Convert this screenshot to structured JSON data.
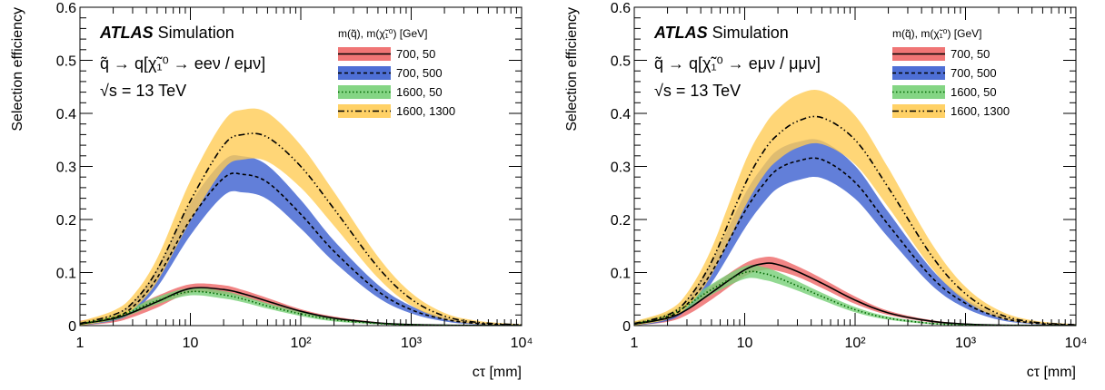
{
  "chart_data": [
    {
      "type": "line",
      "experiment": "ATLAS",
      "label": "Simulation",
      "process": "q̃ → q[χ̃₁⁰ → eeν / eμν]",
      "energy": "√s = 13 TeV",
      "xlabel": "cτ [mm]",
      "ylabel": "Selection efficiency",
      "xscale": "log",
      "xlim": [
        1,
        10000
      ],
      "ylim": [
        0,
        0.6
      ],
      "xticks": [
        "1",
        "10",
        "10²",
        "10³",
        "10⁴"
      ],
      "yticks": [
        "0",
        "0.1",
        "0.2",
        "0.3",
        "0.4",
        "0.5",
        "0.6"
      ],
      "legend_title": "m(q̃), m(χ̃₁⁰) [GeV]",
      "legend_position": "top-right",
      "x": [
        1,
        2,
        3,
        5,
        10,
        20,
        30,
        50,
        100,
        200,
        500,
        1000,
        2000,
        4000,
        10000
      ],
      "series": [
        {
          "name": "700, 50",
          "line": "solid",
          "color": "#000000",
          "band_color": "#ee6666",
          "values": [
            0.003,
            0.013,
            0.025,
            0.045,
            0.07,
            0.068,
            0.06,
            0.046,
            0.027,
            0.014,
            0.005,
            0.002,
            0.0008,
            0.0003,
            0.0001
          ],
          "band": [
            0.006,
            0.007,
            0.009,
            0.011,
            0.008,
            0.008,
            0.007,
            0.006,
            0.004,
            0.003,
            0.0015,
            0.001,
            0.0005,
            0.0002,
            0.0001
          ]
        },
        {
          "name": "700, 500",
          "line": "dashed",
          "color": "#000000",
          "band_color": "#3b5fd0",
          "values": [
            0.003,
            0.015,
            0.035,
            0.09,
            0.2,
            0.278,
            0.285,
            0.27,
            0.21,
            0.14,
            0.065,
            0.03,
            0.012,
            0.004,
            0.001
          ],
          "band": [
            0.004,
            0.006,
            0.01,
            0.018,
            0.03,
            0.033,
            0.034,
            0.032,
            0.027,
            0.02,
            0.012,
            0.007,
            0.004,
            0.002,
            0.0008
          ]
        },
        {
          "name": "1600, 50",
          "line": "dotted",
          "color": "#006600",
          "band_color": "#77d077",
          "values": [
            0.003,
            0.015,
            0.028,
            0.047,
            0.064,
            0.058,
            0.05,
            0.037,
            0.022,
            0.011,
            0.004,
            0.0015,
            0.0005,
            0.0002,
            0.0001
          ],
          "band": [
            0.004,
            0.005,
            0.006,
            0.007,
            0.007,
            0.007,
            0.006,
            0.005,
            0.004,
            0.003,
            0.0015,
            0.0008,
            0.0004,
            0.0002,
            0.0001
          ]
        },
        {
          "name": "1600, 1300",
          "line": "dashdotdot",
          "color": "#000000",
          "band_color": "#ffcc55",
          "values": [
            0.004,
            0.02,
            0.043,
            0.105,
            0.235,
            0.34,
            0.36,
            0.355,
            0.3,
            0.22,
            0.11,
            0.05,
            0.018,
            0.006,
            0.0015
          ],
          "band": [
            0.004,
            0.008,
            0.013,
            0.022,
            0.038,
            0.045,
            0.047,
            0.046,
            0.04,
            0.032,
            0.02,
            0.012,
            0.006,
            0.003,
            0.001
          ]
        }
      ]
    },
    {
      "type": "line",
      "experiment": "ATLAS",
      "label": "Simulation",
      "process": "q̃ → q[χ̃₁⁰ → eμν / μμν]",
      "energy": "√s = 13 TeV",
      "xlabel": "cτ [mm]",
      "ylabel": "Selection efficiency",
      "xscale": "log",
      "xlim": [
        1,
        10000
      ],
      "ylim": [
        0,
        0.6
      ],
      "xticks": [
        "1",
        "10",
        "10²",
        "10³",
        "10⁴"
      ],
      "yticks": [
        "0",
        "0.1",
        "0.2",
        "0.3",
        "0.4",
        "0.5",
        "0.6"
      ],
      "legend_title": "m(q̃), m(χ̃₁⁰) [GeV]",
      "legend_position": "top-right",
      "x": [
        1,
        2,
        3,
        5,
        10,
        15,
        20,
        30,
        50,
        100,
        200,
        500,
        1000,
        2000,
        4000,
        10000
      ],
      "series": [
        {
          "name": "700, 50",
          "line": "solid",
          "color": "#000000",
          "band_color": "#ee6666",
          "values": [
            0.003,
            0.014,
            0.03,
            0.062,
            0.105,
            0.117,
            0.115,
            0.102,
            0.08,
            0.048,
            0.024,
            0.008,
            0.003,
            0.001,
            0.0004,
            0.0001
          ],
          "band": [
            0.004,
            0.007,
            0.01,
            0.013,
            0.012,
            0.012,
            0.012,
            0.01,
            0.009,
            0.007,
            0.004,
            0.002,
            0.001,
            0.0005,
            0.0002,
            0.0001
          ]
        },
        {
          "name": "700, 500",
          "line": "dashed",
          "color": "#000000",
          "band_color": "#3b5fd0",
          "values": [
            0.003,
            0.016,
            0.04,
            0.1,
            0.215,
            0.268,
            0.295,
            0.31,
            0.313,
            0.27,
            0.19,
            0.09,
            0.042,
            0.016,
            0.005,
            0.001
          ],
          "band": [
            0.004,
            0.007,
            0.01,
            0.02,
            0.032,
            0.035,
            0.036,
            0.036,
            0.035,
            0.031,
            0.024,
            0.015,
            0.009,
            0.005,
            0.002,
            0.0008
          ]
        },
        {
          "name": "1600, 50",
          "line": "dotted",
          "color": "#006600",
          "band_color": "#77d077",
          "values": [
            0.003,
            0.018,
            0.038,
            0.068,
            0.1,
            0.098,
            0.09,
            0.075,
            0.055,
            0.03,
            0.014,
            0.004,
            0.0015,
            0.0005,
            0.0002,
            0.0001
          ],
          "band": [
            0.004,
            0.006,
            0.008,
            0.01,
            0.012,
            0.012,
            0.011,
            0.009,
            0.007,
            0.005,
            0.003,
            0.0015,
            0.0008,
            0.0004,
            0.0002,
            0.0001
          ]
        },
        {
          "name": "1600, 1300",
          "line": "dashdotdot",
          "color": "#000000",
          "band_color": "#ffcc55",
          "values": [
            0.004,
            0.02,
            0.048,
            0.12,
            0.265,
            0.33,
            0.36,
            0.385,
            0.392,
            0.35,
            0.26,
            0.13,
            0.06,
            0.022,
            0.007,
            0.0015
          ],
          "band": [
            0.004,
            0.008,
            0.013,
            0.025,
            0.042,
            0.046,
            0.048,
            0.05,
            0.05,
            0.046,
            0.037,
            0.023,
            0.013,
            0.007,
            0.003,
            0.001
          ]
        }
      ]
    }
  ]
}
